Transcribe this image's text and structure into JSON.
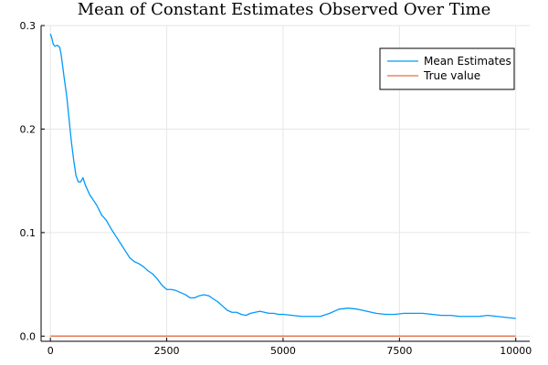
{
  "chart_data": {
    "type": "line",
    "title": "Mean of Constant Estimates Observed Over Time",
    "xlabel": "",
    "ylabel": "",
    "xlim": [
      -200,
      10300
    ],
    "ylim": [
      -0.005,
      0.3
    ],
    "x_ticks": [
      0,
      2500,
      5000,
      7500,
      10000
    ],
    "x_tick_labels": [
      "0",
      "2500",
      "5000",
      "7500",
      "10000"
    ],
    "y_ticks": [
      0.0,
      0.1,
      0.2,
      0.3
    ],
    "y_tick_labels": [
      "0.0",
      "0.1",
      "0.2",
      "0.3"
    ],
    "grid": true,
    "legend_position": "top-right",
    "series": [
      {
        "name": "Mean Estimates",
        "color": "#009AFA",
        "x": [
          0,
          30,
          60,
          100,
          150,
          200,
          230,
          260,
          300,
          350,
          400,
          450,
          500,
          550,
          600,
          650,
          700,
          750,
          800,
          850,
          900,
          1000,
          1100,
          1200,
          1300,
          1400,
          1500,
          1600,
          1700,
          1800,
          1900,
          2000,
          2100,
          2200,
          2300,
          2400,
          2500,
          2600,
          2700,
          2800,
          2900,
          3000,
          3100,
          3200,
          3300,
          3400,
          3500,
          3600,
          3700,
          3800,
          3900,
          4000,
          4100,
          4200,
          4300,
          4400,
          4500,
          4600,
          4700,
          4800,
          4900,
          5000,
          5200,
          5400,
          5600,
          5800,
          6000,
          6200,
          6400,
          6600,
          6800,
          7000,
          7200,
          7400,
          7600,
          7800,
          8000,
          8200,
          8400,
          8600,
          8800,
          9000,
          9200,
          9400,
          9600,
          9800,
          10000
        ],
        "y": [
          0.292,
          0.288,
          0.282,
          0.28,
          0.281,
          0.279,
          0.272,
          0.262,
          0.248,
          0.232,
          0.21,
          0.188,
          0.17,
          0.155,
          0.149,
          0.149,
          0.153,
          0.146,
          0.141,
          0.136,
          0.133,
          0.126,
          0.117,
          0.112,
          0.104,
          0.097,
          0.09,
          0.083,
          0.076,
          0.072,
          0.07,
          0.067,
          0.063,
          0.06,
          0.055,
          0.049,
          0.045,
          0.045,
          0.044,
          0.042,
          0.04,
          0.037,
          0.037,
          0.039,
          0.04,
          0.039,
          0.036,
          0.033,
          0.029,
          0.025,
          0.023,
          0.023,
          0.021,
          0.02,
          0.022,
          0.023,
          0.024,
          0.023,
          0.022,
          0.022,
          0.021,
          0.021,
          0.02,
          0.019,
          0.019,
          0.019,
          0.022,
          0.026,
          0.027,
          0.026,
          0.024,
          0.022,
          0.021,
          0.021,
          0.022,
          0.022,
          0.022,
          0.021,
          0.02,
          0.02,
          0.019,
          0.019,
          0.019,
          0.02,
          0.019,
          0.018,
          0.017
        ]
      },
      {
        "name": "True value",
        "color": "#E26F46",
        "x": [
          0,
          10000
        ],
        "y": [
          0.0,
          0.0
        ]
      }
    ]
  }
}
